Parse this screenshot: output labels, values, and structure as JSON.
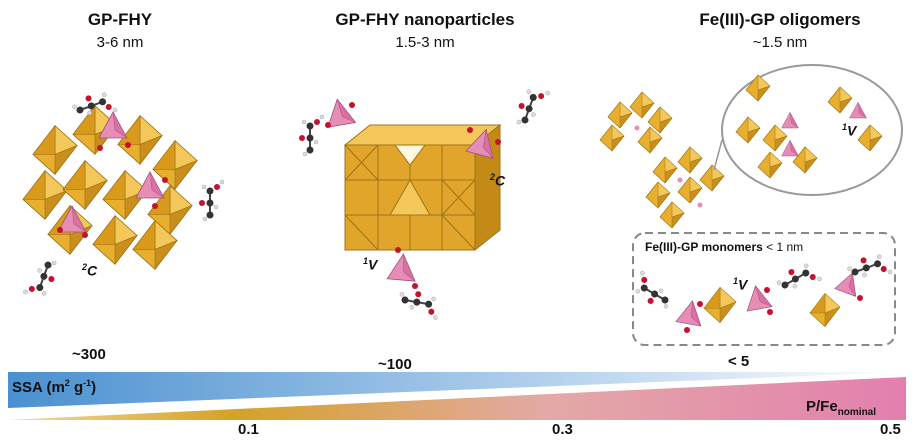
{
  "sections": [
    {
      "title": "GP-FHY",
      "size": "3-6 nm"
    },
    {
      "title": "GP-FHY nanoparticles",
      "size": "1.5-3 nm"
    },
    {
      "title": "Fe(III)-GP oligomers",
      "size": "~1.5 nm"
    }
  ],
  "labels": {
    "c_left": "2C",
    "c_mid": "2C",
    "v_mid": "1V",
    "v_oligo": "1V",
    "v_mono": "1V",
    "sup2": "2"
  },
  "monomers": {
    "title": "Fe(III)-GP monomers",
    "size": "< 1 nm"
  },
  "ssa": {
    "label_main": "SSA (m",
    "sup2": "2",
    " g": " g",
    "sup_neg1": "-1",
    "close": ")",
    "values": [
      "~300",
      "~100",
      "< 5"
    ]
  },
  "pfe": {
    "label": "P/Fe",
    "sub": "nominal"
  },
  "axis_ticks": [
    "0.1",
    "0.3",
    "0.5"
  ],
  "colors": {
    "octahedron": "#E8AE2E",
    "tetrahedron": "#E58DB5",
    "oxygen": "#C8102E",
    "carbon": "#333333",
    "hydrogen": "#E6E6E6",
    "ssa_bar": "#4A90D0",
    "pfe_gold": "#D4A227",
    "pfe_pink": "#E37FAE"
  }
}
